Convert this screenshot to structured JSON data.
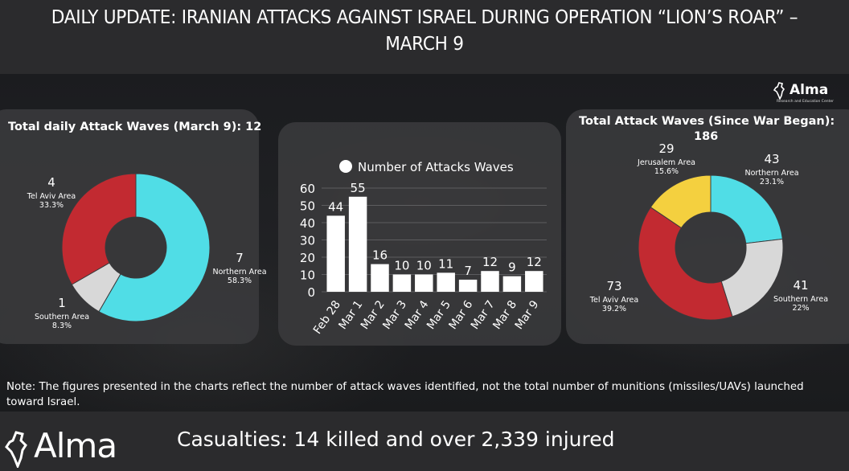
{
  "header": {
    "title": "DAILY UPDATE: IRANIAN ATTACKS AGAINST ISRAEL DURING OPERATION “LION’S ROAR” – MARCH 9"
  },
  "brand": {
    "name": "Alma",
    "subtitle": "Research and Education Center"
  },
  "colors": {
    "cyan": "#50dde6",
    "red": "#c22a31",
    "light_gray": "#d8d8d8",
    "yellow": "#f4d03f",
    "bar": "#ffffff"
  },
  "chart_data": [
    {
      "type": "pie",
      "title": "Total daily Attack Waves (March 9): 12",
      "slices": [
        {
          "label": "Northern Area",
          "value": 7,
          "percent": "58.3%",
          "color": "#50dde6"
        },
        {
          "label": "Southern Area",
          "value": 1,
          "percent": "8.3%",
          "color": "#d8d8d8"
        },
        {
          "label": "Tel Aviv Area",
          "value": 4,
          "percent": "33.3%",
          "color": "#c22a31"
        }
      ]
    },
    {
      "type": "bar",
      "legend": "Number of Attacks Waves",
      "legend_position": "top",
      "categories": [
        "Feb 28",
        "Mar 1",
        "Mar 2",
        "Mar 3",
        "Mar 4",
        "Mar 5",
        "Mar 6",
        "Mar 7",
        "Mar 8",
        "Mar 9"
      ],
      "values": [
        44,
        55,
        16,
        10,
        10,
        11,
        7,
        12,
        9,
        12
      ],
      "yticks": [
        0,
        10,
        20,
        30,
        40,
        50,
        60
      ],
      "ylim": [
        0,
        60
      ],
      "grid": true
    },
    {
      "type": "pie",
      "title_line1": "Total Attack Waves (Since War Began):",
      "title_line2": "186",
      "slices": [
        {
          "label": "Northern Area",
          "value": 43,
          "percent": "23.1%",
          "color": "#50dde6"
        },
        {
          "label": "Southern Area",
          "value": 41,
          "percent": "22%",
          "color": "#d8d8d8"
        },
        {
          "label": "Tel Aviv Area",
          "value": 73,
          "percent": "39.2%",
          "color": "#c22a31"
        },
        {
          "label": "Jerusalem Area",
          "value": 29,
          "percent": "15.6%",
          "color": "#f4d03f"
        }
      ]
    }
  ],
  "note": "Note: The figures presented in the charts reflect the number of attack waves identified, not the total number of munitions (missiles/UAVs) launched toward Israel.",
  "casualties": "Casualties: 14 killed and over 2,339 injured"
}
